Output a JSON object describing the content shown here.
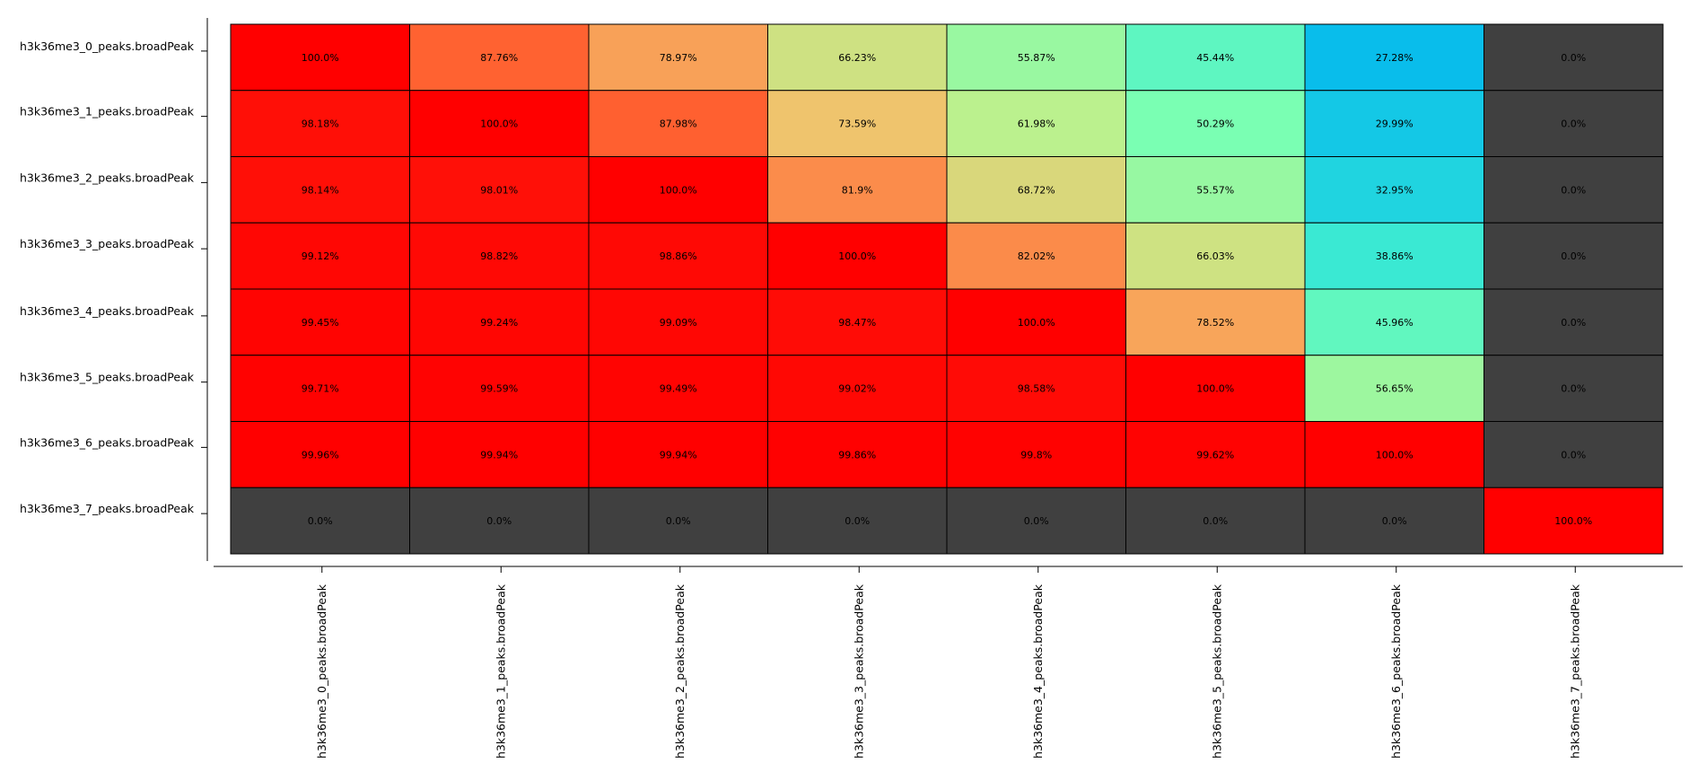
{
  "chart_data": {
    "type": "heatmap",
    "rows": [
      "h3k36me3_0_peaks.broadPeak",
      "h3k36me3_1_peaks.broadPeak",
      "h3k36me3_2_peaks.broadPeak",
      "h3k36me3_3_peaks.broadPeak",
      "h3k36me3_4_peaks.broadPeak",
      "h3k36me3_5_peaks.broadPeak",
      "h3k36me3_6_peaks.broadPeak",
      "h3k36me3_7_peaks.broadPeak"
    ],
    "columns": [
      "h3k36me3_0_peaks.broadPeak",
      "h3k36me3_1_peaks.broadPeak",
      "h3k36me3_2_peaks.broadPeak",
      "h3k36me3_3_peaks.broadPeak",
      "h3k36me3_4_peaks.broadPeak",
      "h3k36me3_5_peaks.broadPeak",
      "h3k36me3_6_peaks.broadPeak",
      "h3k36me3_7_peaks.broadPeak"
    ],
    "values": [
      [
        100.0,
        87.76,
        78.97,
        66.23,
        55.87,
        45.44,
        27.28,
        0.0
      ],
      [
        98.18,
        100.0,
        87.98,
        73.59,
        61.98,
        50.29,
        29.99,
        0.0
      ],
      [
        98.14,
        98.01,
        100.0,
        81.9,
        68.72,
        55.57,
        32.95,
        0.0
      ],
      [
        99.12,
        98.82,
        98.86,
        100.0,
        82.02,
        66.03,
        38.86,
        0.0
      ],
      [
        99.45,
        99.24,
        99.09,
        98.47,
        100.0,
        78.52,
        45.96,
        0.0
      ],
      [
        99.71,
        99.59,
        99.49,
        99.02,
        98.58,
        100.0,
        56.65,
        0.0
      ],
      [
        99.96,
        99.94,
        99.94,
        99.86,
        99.8,
        99.62,
        100.0,
        0.0
      ],
      [
        0.0,
        0.0,
        0.0,
        0.0,
        0.0,
        0.0,
        0.0,
        100.0
      ]
    ],
    "labels": [
      [
        "100.0%",
        "87.76%",
        "78.97%",
        "66.23%",
        "55.87%",
        "45.44%",
        "27.28%",
        "0.0%"
      ],
      [
        "98.18%",
        "100.0%",
        "87.98%",
        "73.59%",
        "61.98%",
        "50.29%",
        "29.99%",
        "0.0%"
      ],
      [
        "98.14%",
        "98.01%",
        "100.0%",
        "81.9%",
        "68.72%",
        "55.57%",
        "32.95%",
        "0.0%"
      ],
      [
        "99.12%",
        "98.82%",
        "98.86%",
        "100.0%",
        "82.02%",
        "66.03%",
        "38.86%",
        "0.0%"
      ],
      [
        "99.45%",
        "99.24%",
        "99.09%",
        "98.47%",
        "100.0%",
        "78.52%",
        "45.96%",
        "0.0%"
      ],
      [
        "99.71%",
        "99.59%",
        "99.49%",
        "99.02%",
        "98.58%",
        "100.0%",
        "56.65%",
        "0.0%"
      ],
      [
        "99.96%",
        "99.94%",
        "99.94%",
        "99.86%",
        "99.8%",
        "99.62%",
        "100.0%",
        "0.0%"
      ],
      [
        "0.0%",
        "0.0%",
        "0.0%",
        "0.0%",
        "0.0%",
        "0.0%",
        "0.0%",
        "100.0%"
      ]
    ],
    "title": "",
    "xlabel": "",
    "ylabel": "",
    "value_range": [
      0,
      100
    ],
    "grid": false,
    "legend": "none",
    "colormap": "rainbow",
    "zero_color": "#404040",
    "cell_border_color": "#000000"
  }
}
